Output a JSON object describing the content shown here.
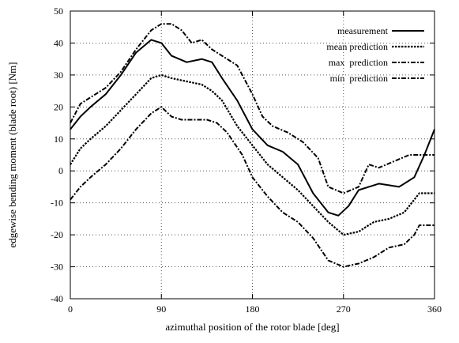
{
  "chart_data": {
    "type": "line",
    "title": "",
    "xlabel": "azimuthal position of the rotor blade [deg]",
    "ylabel": "edgewise bending moment (blade root) [Nm]",
    "xlim": [
      0,
      360
    ],
    "ylim": [
      -40,
      50
    ],
    "x_ticks": [
      0,
      90,
      180,
      270,
      360
    ],
    "y_ticks": [
      -40,
      -30,
      -20,
      -10,
      0,
      10,
      20,
      30,
      40,
      50
    ],
    "grid": true,
    "grid_style": "dotted",
    "legend_position": "top-right",
    "series": [
      {
        "name": "measurement",
        "style": "solid",
        "x": [
          0,
          10,
          20,
          35,
          50,
          65,
          80,
          90,
          100,
          115,
          130,
          140,
          150,
          165,
          180,
          195,
          210,
          225,
          240,
          255,
          265,
          275,
          285,
          295,
          305,
          315,
          325,
          340,
          350,
          360
        ],
        "y": [
          13,
          17,
          20,
          24,
          30,
          37,
          41,
          40,
          36,
          34,
          35,
          34,
          29,
          22,
          13,
          8,
          6,
          2,
          -7,
          -13,
          -14,
          -11,
          -6,
          -5,
          -4,
          -4.5,
          -5,
          -2,
          5,
          13
        ]
      },
      {
        "name": "mean prediction",
        "style": "dotted",
        "x": [
          0,
          10,
          20,
          35,
          50,
          65,
          80,
          90,
          100,
          115,
          130,
          140,
          150,
          165,
          180,
          195,
          210,
          225,
          240,
          255,
          270,
          285,
          300,
          315,
          330,
          345,
          352,
          360
        ],
        "y": [
          2,
          7,
          10,
          14,
          19,
          24,
          29,
          30,
          29,
          28,
          27,
          25,
          22,
          14,
          8,
          2,
          -2,
          -6,
          -11,
          -16,
          -20,
          -19,
          -16,
          -15,
          -13,
          -7,
          -7,
          -7
        ]
      },
      {
        "name": "max  prediction",
        "style": "dashdot",
        "x": [
          0,
          10,
          20,
          35,
          50,
          65,
          80,
          90,
          100,
          110,
          120,
          130,
          140,
          150,
          165,
          180,
          190,
          200,
          215,
          230,
          245,
          255,
          270,
          285,
          295,
          305,
          320,
          335,
          345,
          352,
          360
        ],
        "y": [
          15,
          21,
          23,
          26,
          31,
          38,
          44,
          46,
          46,
          44,
          40,
          41,
          38,
          36,
          33,
          24,
          17,
          14,
          12,
          9,
          4,
          -5,
          -7,
          -5,
          2,
          1,
          3,
          5,
          5,
          5,
          5
        ]
      },
      {
        "name": "min  prediction",
        "style": "dashdot",
        "x": [
          0,
          10,
          20,
          35,
          50,
          65,
          80,
          90,
          100,
          110,
          120,
          135,
          145,
          155,
          170,
          180,
          195,
          210,
          225,
          240,
          255,
          270,
          285,
          300,
          315,
          330,
          340,
          345,
          352,
          360
        ],
        "y": [
          -9,
          -5,
          -2,
          2,
          7,
          13,
          18,
          20,
          17,
          16,
          16,
          16,
          15,
          12,
          5,
          -2,
          -8,
          -13,
          -16,
          -21,
          -28,
          -30,
          -29,
          -27,
          -24,
          -23,
          -20,
          -17,
          -17,
          -17
        ]
      }
    ]
  }
}
